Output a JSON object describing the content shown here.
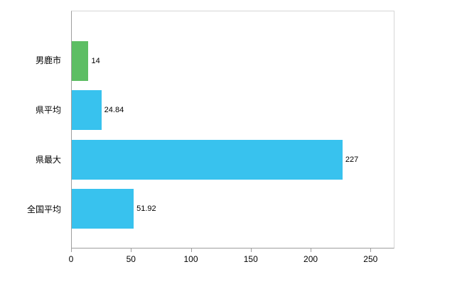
{
  "chart_data": {
    "type": "bar",
    "orientation": "horizontal",
    "title": "",
    "xlabel": "",
    "ylabel": "",
    "categories": [
      "男鹿市",
      "県平均",
      "県最大",
      "全国平均"
    ],
    "values": [
      14,
      24.84,
      227,
      51.92
    ],
    "value_labels": [
      "14",
      "24.84",
      "227",
      "51.92"
    ],
    "bar_colors": [
      "#5dbe64",
      "#38c2ee",
      "#38c2ee",
      "#38c2ee"
    ],
    "x_ticks": [
      0,
      50,
      100,
      150,
      200,
      250
    ],
    "xlim": [
      0,
      270
    ],
    "grid": false,
    "legend": false
  },
  "colors": {
    "axis_line": "#9e9e9e",
    "border_line": "#d6d6d6",
    "text": "#000000",
    "background": "#ffffff"
  }
}
